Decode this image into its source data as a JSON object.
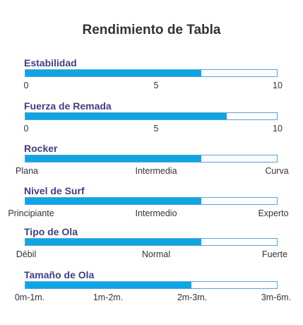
{
  "title": "Rendimiento de Tabla",
  "colors": {
    "title": "#333333",
    "label": "#3f3f86",
    "fill": "#0ea5e3",
    "bar_border": "#5aa2d8",
    "text": "#333333"
  },
  "metrics": [
    {
      "label": "Estabilidad",
      "fill_fraction": 0.7,
      "ticks": [
        "0",
        "5",
        "10"
      ]
    },
    {
      "label": "Fuerza de Remada",
      "fill_fraction": 0.8,
      "ticks": [
        "0",
        "5",
        "10"
      ]
    },
    {
      "label": "Rocker",
      "fill_fraction": 0.7,
      "ticks": [
        "Plana",
        "Intermedia",
        "Curva"
      ]
    },
    {
      "label": "Nivel de Surf",
      "fill_fraction": 0.7,
      "ticks": [
        "Principiante",
        "Intermedio",
        "Experto"
      ]
    },
    {
      "label": "Tipo de Ola",
      "fill_fraction": 0.7,
      "ticks": [
        "Débil",
        "Normal",
        "Fuerte"
      ]
    },
    {
      "label": "Tamaño de Ola",
      "fill_fraction": 0.66,
      "ticks": [
        "0m-1m.",
        "1m-2m.",
        "2m-3m.",
        "3m-6m."
      ]
    }
  ]
}
